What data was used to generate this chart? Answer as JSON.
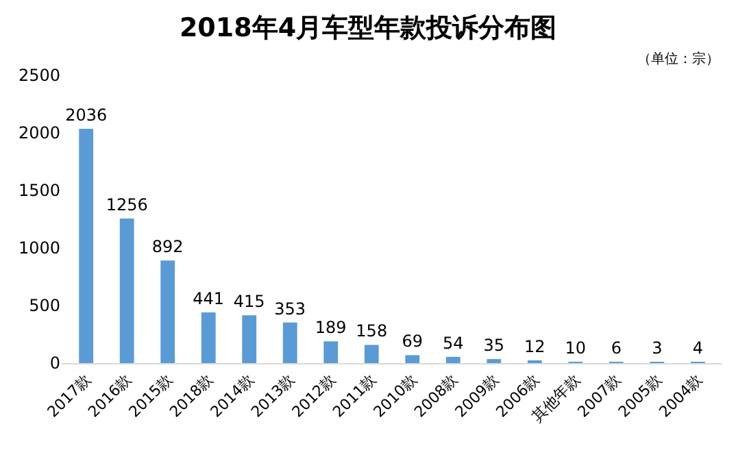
{
  "chart_data": {
    "type": "bar",
    "title": "2018年4月车型年款投诉分布图",
    "annotations": [
      "（单位：宗）"
    ],
    "categories": [
      "2017款",
      "2016款",
      "2015款",
      "2018款",
      "2014款",
      "2013款",
      "2012款",
      "2011款",
      "2010款",
      "2008款",
      "2009款",
      "2006款",
      "其他年款",
      "2007款",
      "2005款",
      "2004款"
    ],
    "values": [
      2036,
      1256,
      892,
      441,
      415,
      353,
      189,
      158,
      69,
      54,
      35,
      12,
      10,
      6,
      3,
      4
    ],
    "color": "#5b9bd5",
    "ylim": [
      0,
      2500
    ],
    "yticks": [
      0,
      500,
      1000,
      1500,
      2000,
      2500
    ],
    "data_labels": true,
    "grid": false,
    "legend": false
  }
}
